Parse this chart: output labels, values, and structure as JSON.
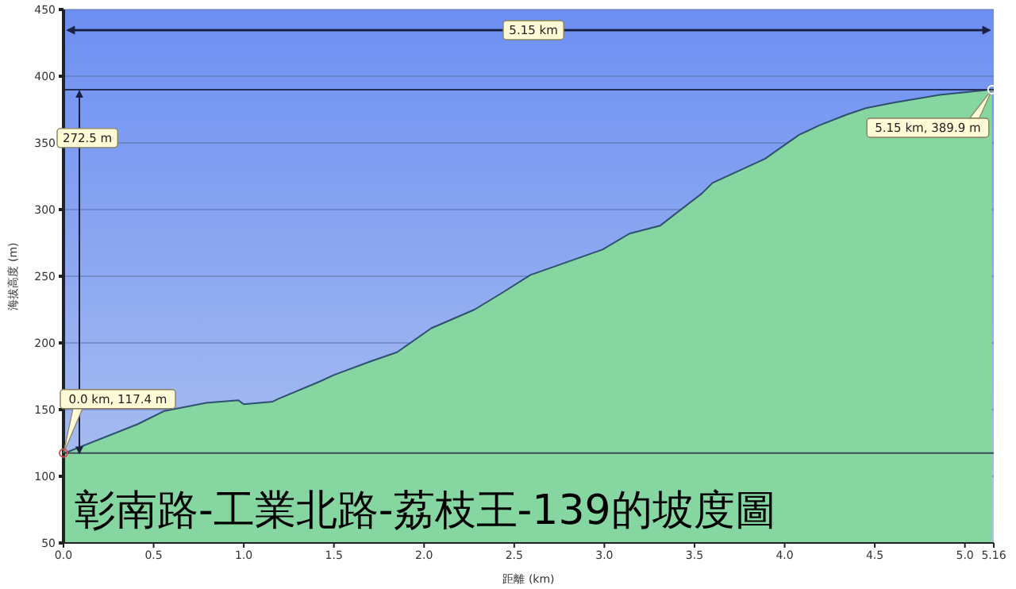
{
  "chart_data": {
    "type": "area",
    "title": "彰南路-工業北路-荔枝王-139的坡度圖",
    "xlabel": "距離 (km)",
    "ylabel": "海拔高度 (m)",
    "x": [
      0,
      0.41,
      0.56,
      0.79,
      0.97,
      1.0,
      1.16,
      1.19,
      1.42,
      1.5,
      1.7,
      1.85,
      2.04,
      2.28,
      2.45,
      2.59,
      2.99,
      3.14,
      3.31,
      3.54,
      3.6,
      3.89,
      4.08,
      4.19,
      4.34,
      4.45,
      4.6,
      4.86,
      5.15
    ],
    "series": [
      {
        "color": "#85d6a0",
        "values": [
          117,
          139,
          149,
          155,
          157,
          154,
          156,
          158,
          171,
          176,
          186,
          193,
          211,
          225,
          239,
          251,
          270,
          282,
          288,
          312,
          320,
          338,
          356,
          363,
          371,
          376,
          380,
          386,
          390
        ]
      }
    ],
    "xlim": [
      0,
      5.16
    ],
    "xticks": [
      {
        "value": 0,
        "label": "0.0"
      },
      0.5,
      {
        "value": 1,
        "label": "1.0"
      },
      1.5,
      {
        "value": 2,
        "label": "2.0"
      },
      2.5,
      {
        "value": 3,
        "label": "3.0"
      },
      3.5,
      {
        "value": 4,
        "label": "4.0"
      },
      4.5,
      {
        "value": 5,
        "label": "5.0"
      },
      5.16
    ],
    "ylim": [
      50,
      450
    ],
    "yticks": [
      50,
      100,
      150,
      200,
      250,
      300,
      350,
      400,
      450
    ],
    "grid": "y",
    "ref_lines": [
      {
        "axis": "y",
        "value": 117.4,
        "color": "#3a4a5a"
      },
      {
        "axis": "y",
        "value": 389.9,
        "color": "#24305a"
      }
    ],
    "annotations": [
      "5.15 km",
      "272.5 m",
      {
        "text": "0.0 km, 117.4 m",
        "x": 0,
        "y": 117.4
      },
      {
        "text": "5.15 km, 389.9 m",
        "x": 5.15,
        "y": 389.9
      }
    ]
  }
}
